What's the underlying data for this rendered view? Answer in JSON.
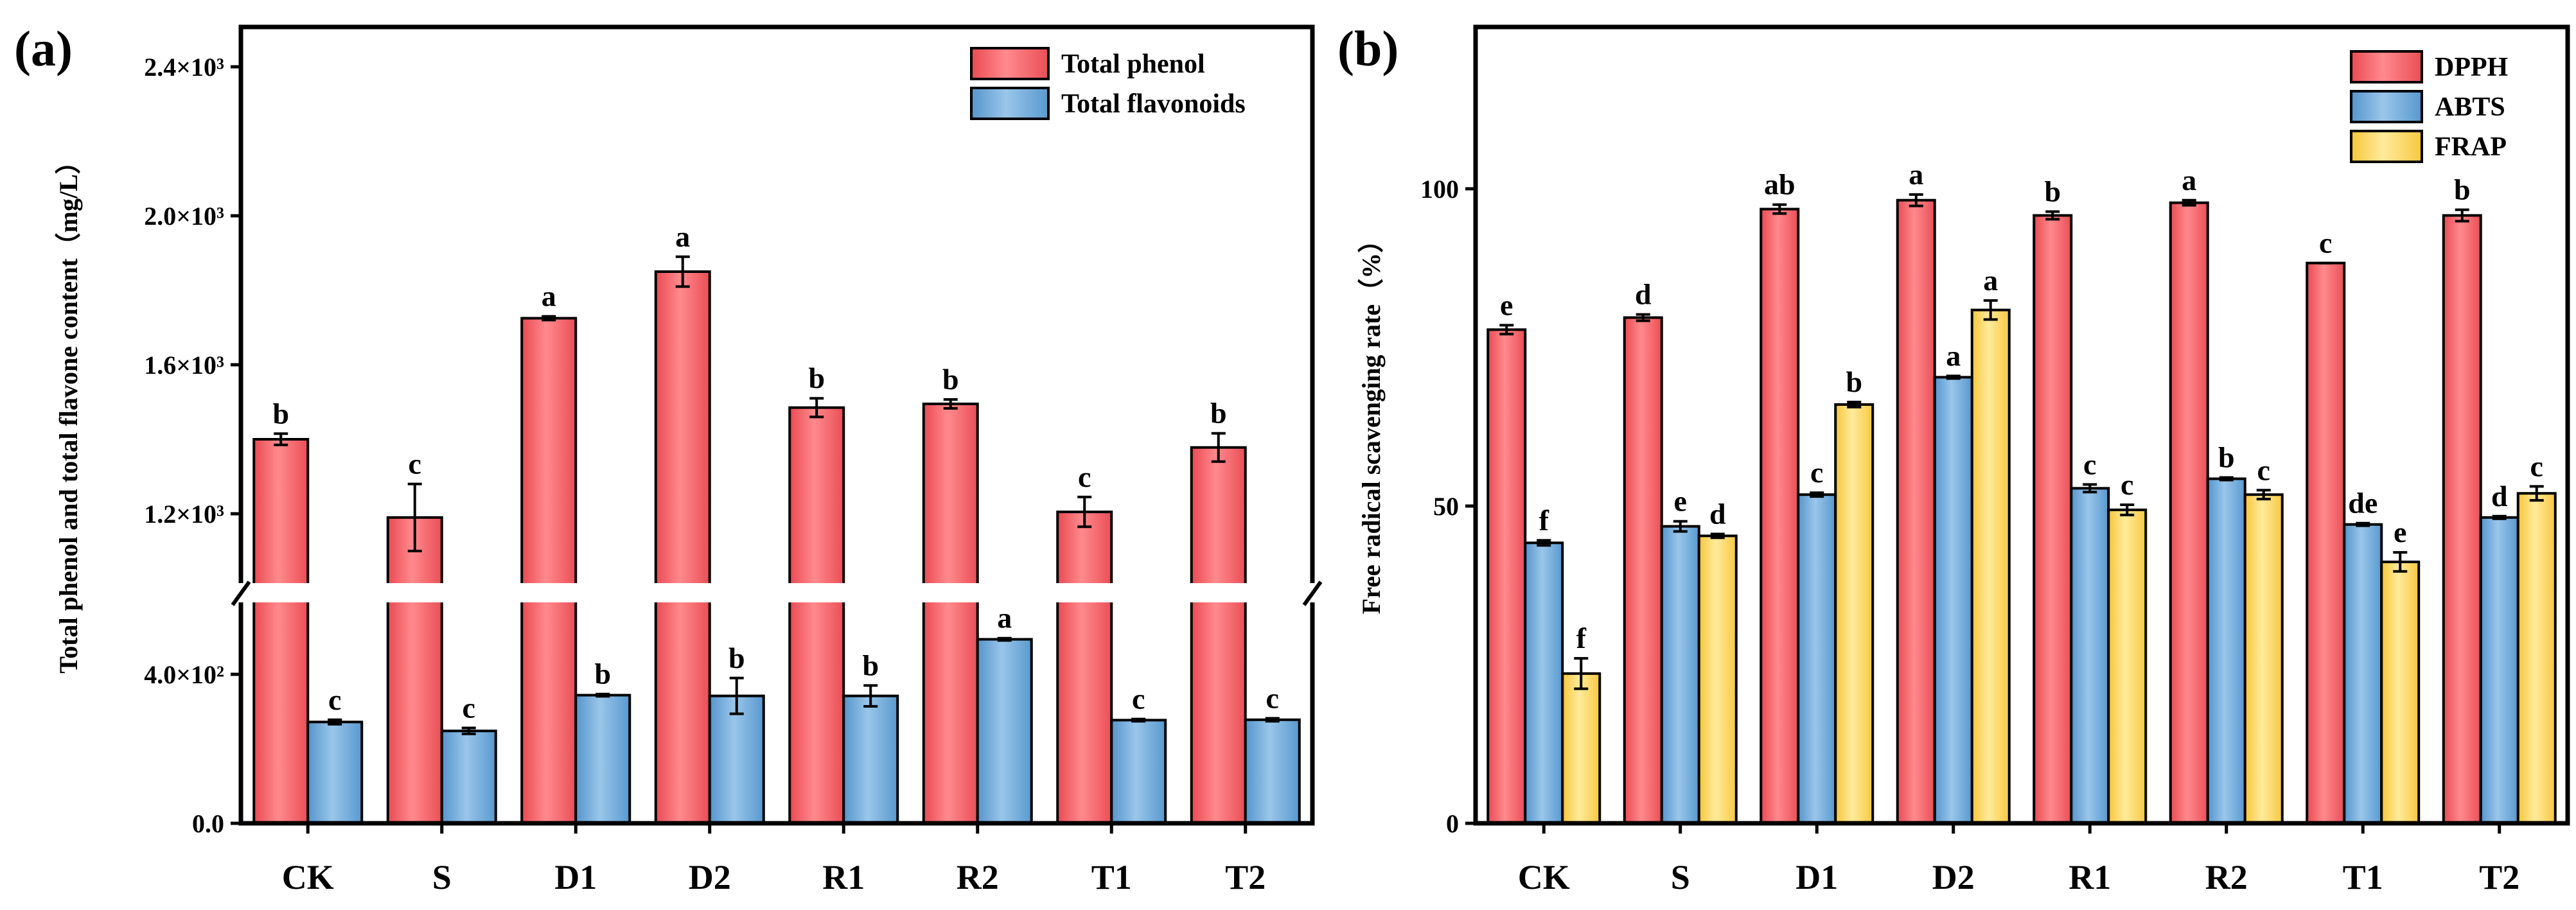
{
  "chart_data": [
    {
      "panel_label": "(a)",
      "type": "bar",
      "ylabel": "Total phenol and total flavone content（mg/L）",
      "xlabel": "",
      "categories": [
        "CK",
        "S",
        "D1",
        "D2",
        "R1",
        "R2",
        "T1",
        "T2"
      ],
      "series": [
        {
          "name": "Total phenol",
          "color": "#f46a6f",
          "values": [
            1400,
            1190,
            1725,
            1850,
            1485,
            1495,
            1205,
            1378
          ],
          "errors": [
            15,
            90,
            5,
            40,
            25,
            12,
            40,
            38
          ],
          "letters": [
            "b",
            "c",
            "a",
            "a",
            "b",
            "b",
            "c",
            "b"
          ]
        },
        {
          "name": "Total flavonoids",
          "color": "#6eaad8",
          "values": [
            272,
            248,
            344,
            342,
            342,
            494,
            277,
            278
          ],
          "errors": [
            6,
            8,
            3,
            48,
            28,
            3,
            3,
            4
          ],
          "letters": [
            "c",
            "c",
            "b",
            "b",
            "b",
            "a",
            "c",
            "c"
          ]
        }
      ],
      "axis_break": {
        "lower": [
          0,
          600
        ],
        "upper": [
          1000,
          2500
        ]
      },
      "yticks": [
        {
          "value": 0,
          "label": "0.0"
        },
        {
          "value": 400,
          "label": "4.0×10²"
        },
        {
          "value": 1200,
          "label": "1.2×10³"
        },
        {
          "value": 1600,
          "label": "1.6×10³"
        },
        {
          "value": 2000,
          "label": "2.0×10³"
        },
        {
          "value": 2400,
          "label": "2.4×10³"
        }
      ],
      "legend_position": "top-right"
    },
    {
      "panel_label": "(b)",
      "type": "bar",
      "ylabel": "Free radical scavenging rate（%）",
      "xlabel": "",
      "categories": [
        "CK",
        "S",
        "D1",
        "D2",
        "R1",
        "R2",
        "T1",
        "T2"
      ],
      "ylim": [
        0,
        125
      ],
      "yticks": [
        {
          "value": 0,
          "label": "0"
        },
        {
          "value": 50,
          "label": "50"
        },
        {
          "value": 100,
          "label": "100"
        }
      ],
      "series": [
        {
          "name": "DPPH",
          "color": "#f46a6f",
          "values": [
            77.8,
            79.7,
            96.8,
            98.2,
            95.8,
            97.8,
            88.3,
            95.8
          ],
          "errors": [
            0.7,
            0.5,
            0.7,
            0.9,
            0.6,
            0.4,
            0.0,
            0.9
          ],
          "letters": [
            "e",
            "d",
            "ab",
            "a",
            "b",
            "a",
            "c",
            "b"
          ]
        },
        {
          "name": "ABTS",
          "color": "#6eaad8",
          "values": [
            44.2,
            46.8,
            51.8,
            70.3,
            52.8,
            54.3,
            47.1,
            48.2
          ],
          "errors": [
            0.4,
            0.8,
            0.3,
            0.2,
            0.6,
            0.2,
            0.2,
            0.2
          ],
          "letters": [
            "f",
            "e",
            "c",
            "a",
            "c",
            "b",
            "de",
            "d"
          ]
        },
        {
          "name": "FRAP",
          "color": "#fbd55c",
          "values": [
            23.6,
            45.3,
            66.0,
            80.9,
            49.4,
            51.8,
            41.2,
            52.0
          ],
          "errors": [
            2.4,
            0.3,
            0.4,
            1.5,
            0.8,
            0.7,
            1.5,
            1.1
          ],
          "letters": [
            "f",
            "d",
            "b",
            "a",
            "c",
            "c",
            "e",
            "c"
          ]
        }
      ],
      "legend_position": "top-right"
    }
  ]
}
